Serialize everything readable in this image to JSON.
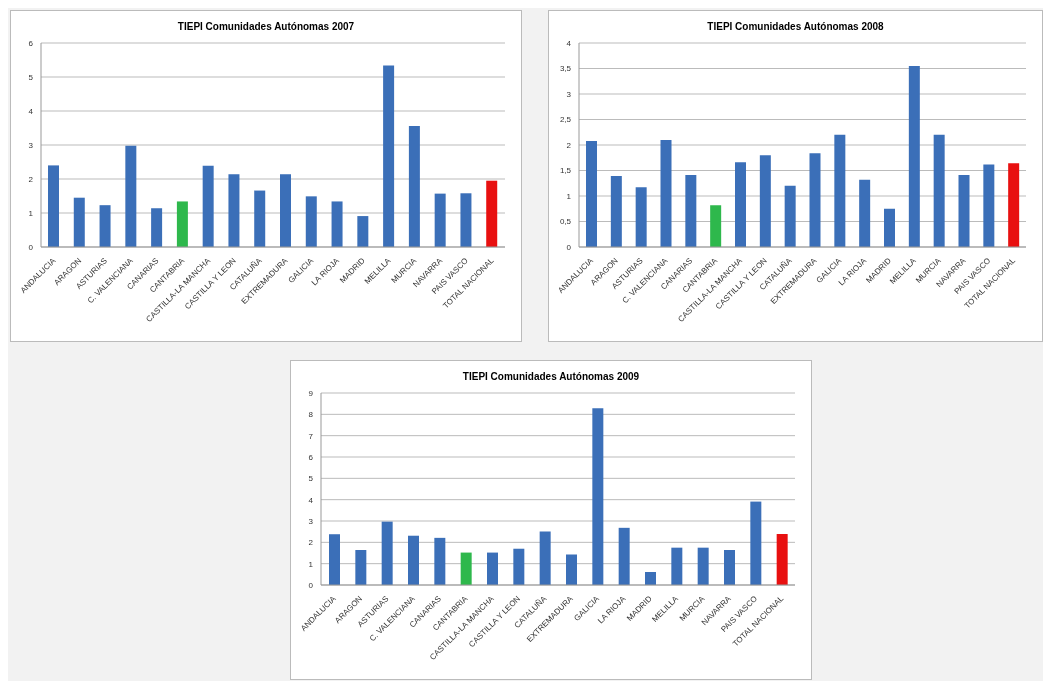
{
  "chart_data": [
    {
      "type": "bar",
      "title": "TIEPI Comunidades Autónomas 2007",
      "categories": [
        "ANDALUCIA",
        "ARAGON",
        "ASTURIAS",
        "C. VALENCIANA",
        "CANARIAS",
        "CANTABRIA",
        "CASTILLA-LA MANCHA",
        "CASTILLA Y LEON",
        "CATALUÑA",
        "EXTREMADURA",
        "GALICIA",
        "LA RIOJA",
        "MADRID",
        "MELILLA",
        "MURCIA",
        "NAVARRA",
        "PAIS VASCO",
        "TOTAL NACIONAL"
      ],
      "values": [
        2.4,
        1.45,
        1.23,
        2.98,
        1.14,
        1.34,
        2.39,
        2.14,
        1.66,
        2.14,
        1.49,
        1.34,
        0.91,
        5.34,
        3.56,
        1.57,
        1.58,
        1.95
      ],
      "colors": [
        "#3b6fb8",
        "#3b6fb8",
        "#3b6fb8",
        "#3b6fb8",
        "#3b6fb8",
        "#2eb84c",
        "#3b6fb8",
        "#3b6fb8",
        "#3b6fb8",
        "#3b6fb8",
        "#3b6fb8",
        "#3b6fb8",
        "#3b6fb8",
        "#3b6fb8",
        "#3b6fb8",
        "#3b6fb8",
        "#3b6fb8",
        "#e81010"
      ],
      "ylim": [
        0,
        6
      ],
      "yticks": [
        0,
        1,
        2,
        3,
        4,
        5,
        6
      ],
      "grid": "y",
      "legend": false
    },
    {
      "type": "bar",
      "title": "TIEPI Comunidades Autónomas 2008",
      "categories": [
        "ANDALUCIA",
        "ARAGON",
        "ASTURIAS",
        "C. VALENCIANA",
        "CANARIAS",
        "CANTABRIA",
        "CASTILLA-LA MANCHA",
        "CASTILLA Y LEON",
        "CATALUÑA",
        "EXTREMADURA",
        "GALICIA",
        "LA RIOJA",
        "MADRID",
        "MELILLA",
        "MURCIA",
        "NAVARRA",
        "PAIS VASCO",
        "TOTAL NACIONAL"
      ],
      "values": [
        2.08,
        1.39,
        1.17,
        2.1,
        1.41,
        0.82,
        1.66,
        1.8,
        1.2,
        1.84,
        2.2,
        1.32,
        0.75,
        3.55,
        2.2,
        1.41,
        1.62,
        1.64
      ],
      "colors": [
        "#3b6fb8",
        "#3b6fb8",
        "#3b6fb8",
        "#3b6fb8",
        "#3b6fb8",
        "#2eb84c",
        "#3b6fb8",
        "#3b6fb8",
        "#3b6fb8",
        "#3b6fb8",
        "#3b6fb8",
        "#3b6fb8",
        "#3b6fb8",
        "#3b6fb8",
        "#3b6fb8",
        "#3b6fb8",
        "#3b6fb8",
        "#e81010"
      ],
      "ylim": [
        0,
        4
      ],
      "yticks": [
        0,
        {
          "value": 0.5,
          "label": "0,5"
        },
        1,
        {
          "value": 1.5,
          "label": "1,5"
        },
        2,
        {
          "value": 2.5,
          "label": "2,5"
        },
        3,
        {
          "value": 3.5,
          "label": "3,5"
        },
        4
      ],
      "grid": "y",
      "legend": false
    },
    {
      "type": "bar",
      "title": "TIEPI Comunidades Autónomas 2009",
      "categories": [
        "ANDALUCIA",
        "ARAGON",
        "ASTURIAS",
        "C. VALENCIANA",
        "CANARIAS",
        "CANTABRIA",
        "CASTILLA-LA MANCHA",
        "CASTILLA Y LEON",
        "CATALUÑA",
        "EXTREMADURA",
        "GALICIA",
        "LA RIOJA",
        "MADRID",
        "MELILLA",
        "MURCIA",
        "NAVARRA",
        "PAIS VASCO",
        "TOTAL NACIONAL"
      ],
      "values": [
        2.38,
        1.64,
        2.97,
        2.31,
        2.21,
        1.52,
        1.52,
        1.7,
        2.51,
        1.43,
        8.28,
        2.68,
        0.61,
        1.75,
        1.75,
        1.64,
        3.91,
        2.39
      ],
      "colors": [
        "#3b6fb8",
        "#3b6fb8",
        "#3b6fb8",
        "#3b6fb8",
        "#3b6fb8",
        "#2eb84c",
        "#3b6fb8",
        "#3b6fb8",
        "#3b6fb8",
        "#3b6fb8",
        "#3b6fb8",
        "#3b6fb8",
        "#3b6fb8",
        "#3b6fb8",
        "#3b6fb8",
        "#3b6fb8",
        "#3b6fb8",
        "#e81010"
      ],
      "ylim": [
        0,
        9
      ],
      "yticks": [
        0,
        1,
        2,
        3,
        4,
        5,
        6,
        7,
        8,
        9
      ],
      "grid": "y",
      "legend": false
    }
  ]
}
